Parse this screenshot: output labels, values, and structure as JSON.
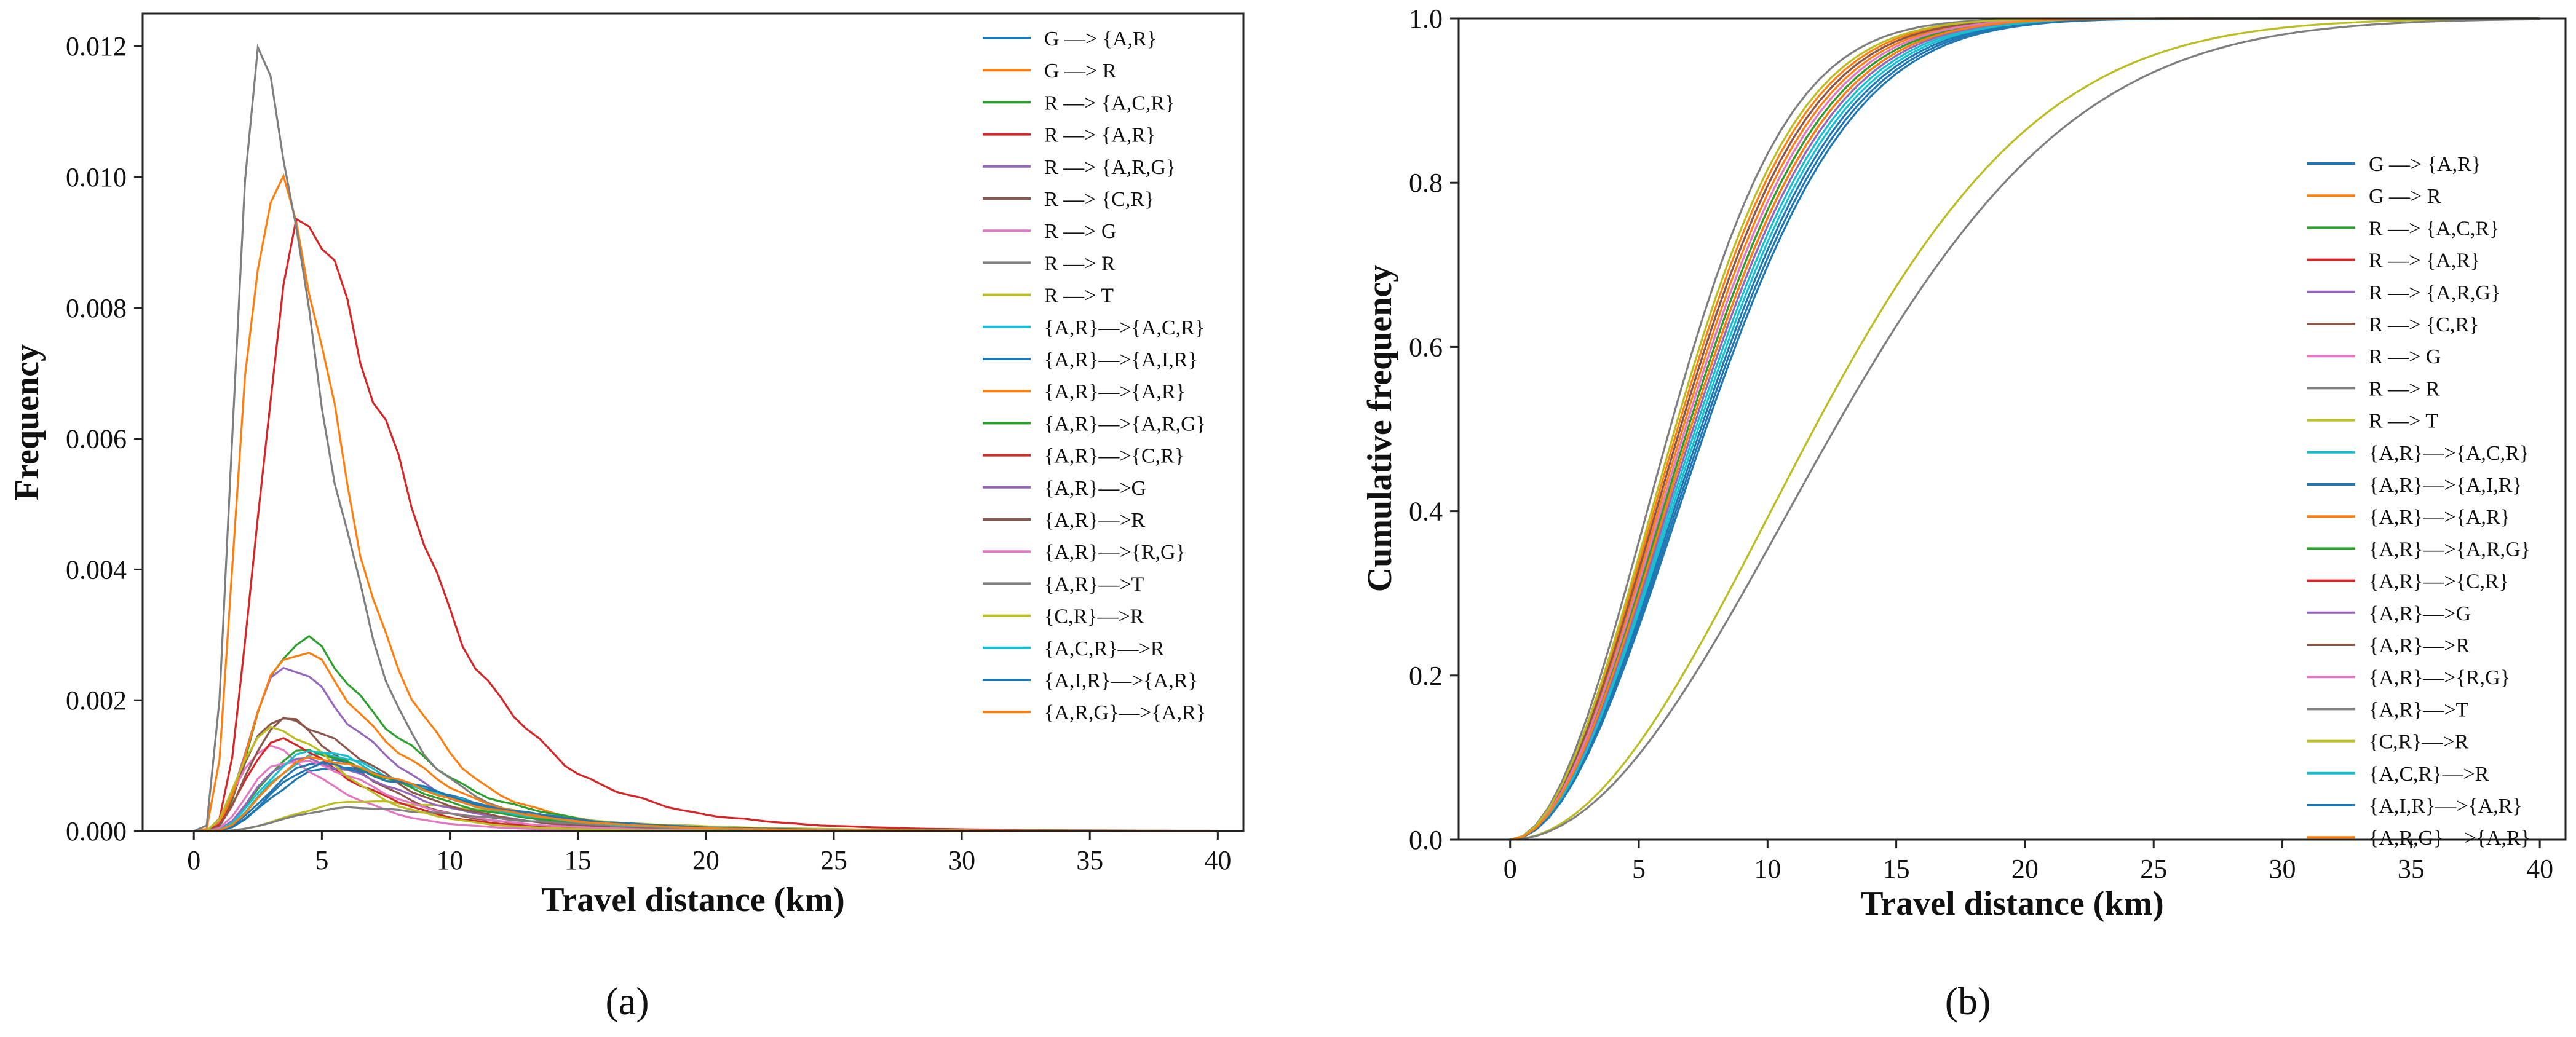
{
  "chart_data": [
    {
      "type": "line",
      "panel_label": "(a)",
      "xlabel": "Travel distance (km)",
      "ylabel": "Frequency",
      "xlim": [
        -2,
        41
      ],
      "ylim": [
        0,
        0.0125
      ],
      "xticks": [
        0,
        5,
        10,
        15,
        20,
        25,
        30,
        35,
        40
      ],
      "xtick_labels": [
        "0",
        "5",
        "10",
        "15",
        "20",
        "25",
        "30",
        "35",
        "40"
      ],
      "yticks": [
        0,
        0.002,
        0.004,
        0.006,
        0.008,
        0.01,
        0.012
      ],
      "ytick_labels": [
        "0.000",
        "0.002",
        "0.004",
        "0.006",
        "0.008",
        "0.010",
        "0.012"
      ],
      "legend_position": "top-right",
      "series": [
        {
          "name": "G —> {A,R}",
          "color": "#1f77b4",
          "peak": 0.00095,
          "mode": 5.5
        },
        {
          "name": "G —> R",
          "color": "#ff7f0e",
          "peak": 0.01005,
          "mode": 3.2
        },
        {
          "name": "R —> {A,C,R}",
          "color": "#2ca02c",
          "peak": 0.00285,
          "mode": 4.2
        },
        {
          "name": "R —> {A,R}",
          "color": "#d62728",
          "peak": 0.00915,
          "mode": 4.6
        },
        {
          "name": "R —> {A,R,G}",
          "color": "#9467bd",
          "peak": 0.00245,
          "mode": 3.8
        },
        {
          "name": "R —> {C,R}",
          "color": "#8c564b",
          "peak": 0.0017,
          "mode": 3.5
        },
        {
          "name": "R —> G",
          "color": "#e377c2",
          "peak": 0.00125,
          "mode": 3.0
        },
        {
          "name": "R —> R",
          "color": "#7f7f7f",
          "peak": 0.0116,
          "mode": 2.8
        },
        {
          "name": "R —> T",
          "color": "#bcbd22",
          "peak": 0.00045,
          "mode": 7.0
        },
        {
          "name": "{A,R}—>{A,C,R}",
          "color": "#17becf",
          "peak": 0.00115,
          "mode": 5.0
        },
        {
          "name": "{A,R}—>{A,I,R}",
          "color": "#1f77b4",
          "peak": 0.00105,
          "mode": 5.2
        },
        {
          "name": "{A,R}—>{A,R}",
          "color": "#ff7f0e",
          "peak": 0.0027,
          "mode": 4.0
        },
        {
          "name": "{A,R}—>{A,R,G}",
          "color": "#2ca02c",
          "peak": 0.0012,
          "mode": 4.6
        },
        {
          "name": "{A,R}—>{C,R}",
          "color": "#d62728",
          "peak": 0.00135,
          "mode": 3.5
        },
        {
          "name": "{A,R}—>G",
          "color": "#9467bd",
          "peak": 0.0011,
          "mode": 4.4
        },
        {
          "name": "{A,R}—>R",
          "color": "#8c564b",
          "peak": 0.0017,
          "mode": 3.9
        },
        {
          "name": "{A,R}—>{R,G}",
          "color": "#e377c2",
          "peak": 0.0011,
          "mode": 4.0
        },
        {
          "name": "{A,R}—>T",
          "color": "#7f7f7f",
          "peak": 0.00035,
          "mode": 6.5
        },
        {
          "name": "{C,R}—>R",
          "color": "#bcbd22",
          "peak": 0.0016,
          "mode": 3.2
        },
        {
          "name": "{A,C,R}—>R",
          "color": "#17becf",
          "peak": 0.0012,
          "mode": 4.8
        },
        {
          "name": "{A,I,R}—>{A,R}",
          "color": "#1f77b4",
          "peak": 0.001,
          "mode": 5.4
        },
        {
          "name": "{A,R,G}—>{A,R}",
          "color": "#ff7f0e",
          "peak": 0.0011,
          "mode": 5.0
        }
      ]
    },
    {
      "type": "line",
      "panel_label": "(b)",
      "xlabel": "Travel distance (km)",
      "ylabel": "Cumulative frequency",
      "xlim": [
        -2,
        41
      ],
      "ylim": [
        0,
        1.0
      ],
      "xticks": [
        0,
        5,
        10,
        15,
        20,
        25,
        30,
        35,
        40
      ],
      "xtick_labels": [
        "0",
        "5",
        "10",
        "15",
        "20",
        "25",
        "30",
        "35",
        "40"
      ],
      "yticks": [
        0,
        0.2,
        0.4,
        0.6,
        0.8,
        1.0
      ],
      "ytick_labels": [
        "0.0",
        "0.2",
        "0.4",
        "0.6",
        "0.8",
        "1.0"
      ],
      "legend_position": "center-right",
      "series": [
        {
          "name": "G —> {A,R}",
          "color": "#1f77b4",
          "median_km": 7.4
        },
        {
          "name": "G —> R",
          "color": "#ff7f0e",
          "median_km": 6.5
        },
        {
          "name": "R —> {A,C,R}",
          "color": "#2ca02c",
          "median_km": 7.0
        },
        {
          "name": "R —> {A,R}",
          "color": "#d62728",
          "median_km": 6.9
        },
        {
          "name": "R —> {A,R,G}",
          "color": "#9467bd",
          "median_km": 7.1
        },
        {
          "name": "R —> {C,R}",
          "color": "#8c564b",
          "median_km": 6.6
        },
        {
          "name": "R —> G",
          "color": "#e377c2",
          "median_km": 6.8
        },
        {
          "name": "R —> R",
          "color": "#7f7f7f",
          "median_km": 6.2
        },
        {
          "name": "R —> T",
          "color": "#bcbd22",
          "median_km": 11.8
        },
        {
          "name": "{A,R}—>{A,C,R}",
          "color": "#17becf",
          "median_km": 7.2
        },
        {
          "name": "{A,R}—>{A,I,R}",
          "color": "#1f77b4",
          "median_km": 7.5
        },
        {
          "name": "{A,R}—>{A,R}",
          "color": "#ff7f0e",
          "median_km": 6.7
        },
        {
          "name": "{A,R}—>{A,R,G}",
          "color": "#2ca02c",
          "median_km": 6.9
        },
        {
          "name": "{A,R}—>{C,R}",
          "color": "#d62728",
          "median_km": 7.0
        },
        {
          "name": "{A,R}—>G",
          "color": "#9467bd",
          "median_km": 7.1
        },
        {
          "name": "{A,R}—>R",
          "color": "#8c564b",
          "median_km": 6.6
        },
        {
          "name": "{A,R}—>{R,G}",
          "color": "#e377c2",
          "median_km": 6.8
        },
        {
          "name": "{A,R}—>T",
          "color": "#7f7f7f",
          "median_km": 12.6
        },
        {
          "name": "{C,R}—>R",
          "color": "#bcbd22",
          "median_km": 6.4
        },
        {
          "name": "{A,C,R}—>R",
          "color": "#17becf",
          "median_km": 7.3
        },
        {
          "name": "{A,I,R}—>{A,R}",
          "color": "#1f77b4",
          "median_km": 7.6
        },
        {
          "name": "{A,R,G}—>{A,R}",
          "color": "#ff7f0e",
          "median_km": 7.0
        }
      ]
    }
  ]
}
